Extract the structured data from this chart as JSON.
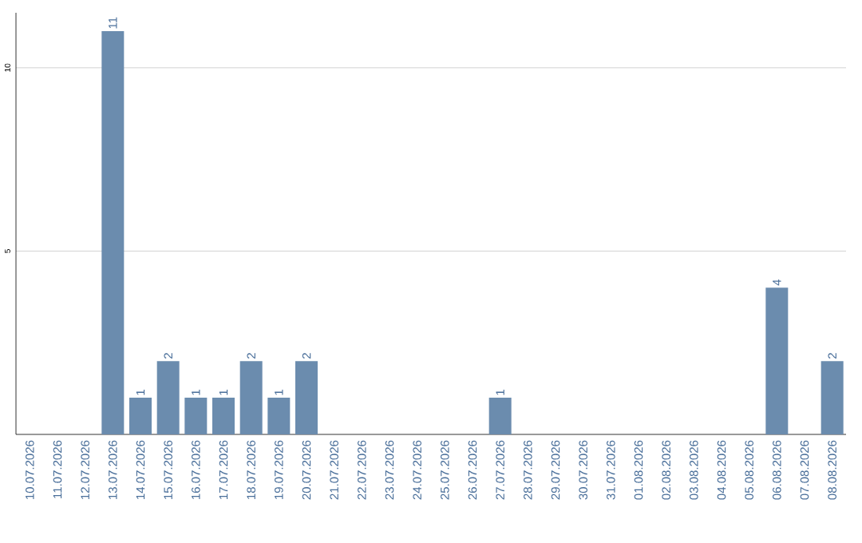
{
  "chart_data": {
    "type": "bar",
    "categories": [
      "10.07.2026",
      "11.07.2026",
      "12.07.2026",
      "13.07.2026",
      "14.07.2026",
      "15.07.2026",
      "16.07.2026",
      "17.07.2026",
      "18.07.2026",
      "19.07.2026",
      "20.07.2026",
      "21.07.2026",
      "22.07.2026",
      "23.07.2026",
      "24.07.2026",
      "25.07.2026",
      "26.07.2026",
      "27.07.2026",
      "28.07.2026",
      "29.07.2026",
      "30.07.2026",
      "31.07.2026",
      "01.08.2026",
      "02.08.2026",
      "03.08.2026",
      "04.08.2026",
      "05.08.2026",
      "06.08.2026",
      "07.08.2026",
      "08.08.2026"
    ],
    "values": [
      0,
      0,
      0,
      11,
      1,
      2,
      1,
      1,
      2,
      1,
      2,
      0,
      0,
      0,
      0,
      0,
      0,
      1,
      0,
      0,
      0,
      0,
      0,
      0,
      0,
      0,
      0,
      4,
      0,
      2
    ],
    "value_labels": [
      null,
      null,
      null,
      "11",
      "1",
      "2",
      "1",
      "1",
      "2",
      "1",
      "2",
      null,
      null,
      null,
      null,
      null,
      null,
      "1",
      null,
      null,
      null,
      null,
      null,
      null,
      null,
      null,
      null,
      "4",
      null,
      "2"
    ],
    "color": "#6b8cae",
    "ylim": [
      0,
      11.5
    ],
    "yticks": [
      5,
      10
    ],
    "grid": "y"
  }
}
